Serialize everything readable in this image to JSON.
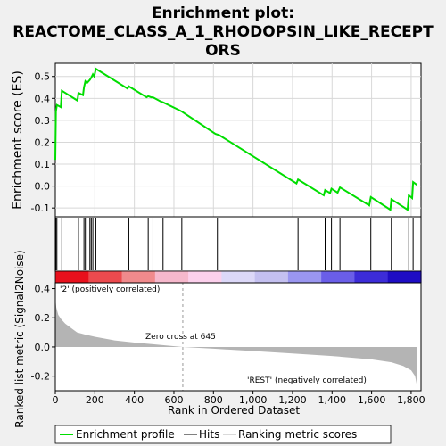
{
  "title_lines": [
    "Enrichment plot:",
    "REACTOME_CLASS_A_1_RHODOPSIN_LIKE_RECEPT",
    "ORS"
  ],
  "colors": {
    "enrichment_line": "#00dd00",
    "panel_bg": "#ffffff",
    "page_bg": "#f0f0f0",
    "hit_line": "#000000",
    "metric_fill": "#b4b4b4",
    "pos_label": "#cc0000",
    "neg_label": "#2222bb",
    "zero_cross_line": "#999999"
  },
  "chart_data": [
    {
      "type": "line",
      "name": "enrichment-profile",
      "ylabel": "Enrichment score (ES)",
      "xlim": [
        0,
        1850
      ],
      "ylim": [
        -0.14,
        0.56
      ],
      "yticks": [
        -0.1,
        0.0,
        0.1,
        0.2,
        0.3,
        0.4,
        0.5
      ],
      "ytick_labels": [
        "-0.1",
        "0.0",
        "0.1",
        "0.2",
        "0.3",
        "0.4",
        "0.5"
      ],
      "grid": true,
      "x": [
        0,
        3,
        8,
        28,
        33,
        112,
        117,
        140,
        145,
        152,
        160,
        175,
        182,
        190,
        197,
        205,
        365,
        372,
        462,
        470,
        485,
        494,
        535,
        545,
        630,
        640,
        810,
        830,
        1220,
        1228,
        1358,
        1365,
        1390,
        1397,
        1428,
        1440,
        1588,
        1596,
        1695,
        1700,
        1782,
        1788,
        1805,
        1810,
        1830
      ],
      "y": [
        0.12,
        0.34,
        0.37,
        0.36,
        0.435,
        0.39,
        0.425,
        0.415,
        0.45,
        0.478,
        0.47,
        0.485,
        0.495,
        0.51,
        0.5,
        0.535,
        0.445,
        0.455,
        0.405,
        0.41,
        0.405,
        0.405,
        0.385,
        0.382,
        0.345,
        0.34,
        0.238,
        0.232,
        0.012,
        0.03,
        -0.042,
        -0.018,
        -0.032,
        -0.012,
        -0.03,
        -0.006,
        -0.088,
        -0.05,
        -0.108,
        -0.06,
        -0.108,
        -0.042,
        -0.055,
        0.018,
        0.005
      ]
    },
    {
      "type": "scatter",
      "name": "hits",
      "x": [
        3,
        8,
        33,
        117,
        145,
        152,
        175,
        182,
        190,
        205,
        372,
        470,
        494,
        545,
        640,
        820,
        1228,
        1365,
        1397,
        1440,
        1596,
        1700,
        1788,
        1810
      ]
    },
    {
      "type": "area",
      "name": "ranked-list-metric",
      "xlabel": "Rank in Ordered Dataset",
      "ylabel": "Ranked list metric (Signal2Noise)",
      "xlim": [
        0,
        1850
      ],
      "ylim": [
        -0.3,
        0.44
      ],
      "xticks": [
        0,
        200,
        400,
        600,
        800,
        1000,
        1200,
        1400,
        1600,
        1800
      ],
      "xtick_labels": [
        "0",
        "200",
        "400",
        "600",
        "800",
        "1,000",
        "1,200",
        "1,400",
        "1,600",
        "1,800"
      ],
      "yticks": [
        -0.2,
        0.0,
        0.2,
        0.4
      ],
      "ytick_labels": [
        "-0.2",
        "0.0",
        "0.2",
        "0.4"
      ],
      "x": [
        0,
        5,
        15,
        30,
        50,
        80,
        110,
        150,
        200,
        300,
        400,
        500,
        645,
        800,
        1000,
        1200,
        1400,
        1600,
        1700,
        1760,
        1800,
        1820,
        1830
      ],
      "y": [
        0.33,
        0.27,
        0.22,
        0.19,
        0.16,
        0.13,
        0.1,
        0.085,
        0.07,
        0.045,
        0.03,
        0.018,
        0.0,
        -0.012,
        -0.028,
        -0.045,
        -0.062,
        -0.085,
        -0.105,
        -0.13,
        -0.16,
        -0.2,
        -0.27
      ]
    }
  ],
  "annotations": {
    "positive_label": "'2' (positively correlated)",
    "negative_label": "'REST' (negatively correlated)",
    "zero_cross": "Zero cross at 645"
  },
  "heatmap_colors": [
    "#e8101c",
    "#ec4a4e",
    "#f08a8c",
    "#f6b8cc",
    "#fcd0ec",
    "#dcd8f8",
    "#c4c0f0",
    "#9a96f0",
    "#6a5ee8",
    "#3c2cd8",
    "#1e0cc4"
  ],
  "legend": {
    "position": "bottom",
    "items": [
      {
        "label": "Enrichment profile",
        "color": "#00dd00",
        "style": "thick"
      },
      {
        "label": "Hits",
        "color": "#000000",
        "style": "thin"
      },
      {
        "label": "Ranking metric scores",
        "color": "#b4b4b4",
        "style": "thin"
      }
    ]
  }
}
